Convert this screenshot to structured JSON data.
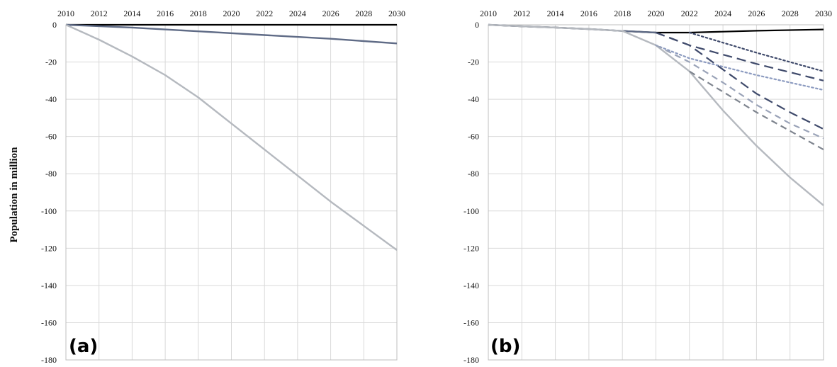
{
  "y_axis_label": "Population in million",
  "chart_data": [
    {
      "type": "line",
      "panel_label": "(a)",
      "x_ticks": [
        "2010",
        "2012",
        "2014",
        "2016",
        "2018",
        "2020",
        "2022",
        "2024",
        "2026",
        "2028",
        "2030"
      ],
      "y_ticks": [
        "0",
        "-20",
        "-40",
        "-60",
        "-80",
        "-100",
        "-120",
        "-140",
        "-160",
        "-180"
      ],
      "xlim": [
        2010,
        2030
      ],
      "ylim": [
        -180,
        0
      ],
      "x_axis_position": "top",
      "grid": true,
      "series": [
        {
          "color": "#000000",
          "style": "solid",
          "x": [
            2010,
            2030
          ],
          "y": [
            0,
            0
          ]
        },
        {
          "color": "#5f6b86",
          "style": "solid",
          "x": [
            2010,
            2014,
            2018,
            2022,
            2026,
            2030
          ],
          "y": [
            0,
            -1.5,
            -3.5,
            -5.5,
            -7.5,
            -10
          ]
        },
        {
          "color": "#b5b9bf",
          "style": "solid",
          "x": [
            2010,
            2012,
            2014,
            2016,
            2018,
            2020,
            2022,
            2024,
            2026,
            2028,
            2030
          ],
          "y": [
            0,
            -8,
            -17,
            -27,
            -39,
            -53,
            -67,
            -81,
            -95,
            -108,
            -121
          ]
        }
      ]
    },
    {
      "type": "line",
      "panel_label": "(b)",
      "x_ticks": [
        "2010",
        "2012",
        "2014",
        "2016",
        "2018",
        "2020",
        "2022",
        "2024",
        "2026",
        "2028",
        "2030"
      ],
      "y_ticks": [
        "0",
        "-20",
        "-40",
        "-60",
        "-80",
        "-100",
        "-120",
        "-140",
        "-160",
        "-180"
      ],
      "xlim": [
        2010,
        2030
      ],
      "ylim": [
        -180,
        0
      ],
      "x_axis_position": "top",
      "grid": true,
      "series": [
        {
          "color": "#000000",
          "style": "solid",
          "x": [
            2010,
            2012,
            2014,
            2016,
            2018,
            2020,
            2022,
            2026,
            2030
          ],
          "y": [
            0,
            -0.8,
            -1.5,
            -2.3,
            -3.3,
            -4.2,
            -4.2,
            -3.2,
            -2.5
          ]
        },
        {
          "color": "#5f6b86",
          "style": "solid",
          "x": [
            2010,
            2012,
            2014,
            2016,
            2018,
            2020
          ],
          "y": [
            0,
            -0.8,
            -1.5,
            -2.3,
            -3.3,
            -4.2
          ]
        },
        {
          "color": "#b5b9bf",
          "style": "solid",
          "x": [
            2010,
            2012,
            2014,
            2016,
            2018,
            2020,
            2022,
            2024,
            2026,
            2028,
            2030
          ],
          "y": [
            0,
            -0.8,
            -1.5,
            -2.3,
            -3.3,
            -11,
            -25,
            -46,
            -65,
            -82,
            -97
          ]
        },
        {
          "color": "#3f4a6b",
          "style": "dotted",
          "x": [
            2022,
            2026,
            2030
          ],
          "y": [
            -4.2,
            -15,
            -25
          ]
        },
        {
          "color": "#3f4a6b",
          "style": "dashed-long",
          "x": [
            2020,
            2022,
            2026,
            2030
          ],
          "y": [
            -4.2,
            -11,
            -21,
            -30
          ]
        },
        {
          "color": "#8c9bc0",
          "style": "dotted",
          "x": [
            2020,
            2022,
            2026,
            2030
          ],
          "y": [
            -11,
            -18,
            -27,
            -35
          ]
        },
        {
          "color": "#3f4a6b",
          "style": "dashed-long",
          "x": [
            2020,
            2022,
            2024,
            2026,
            2028,
            2030
          ],
          "y": [
            -4.2,
            -11,
            -24,
            -37,
            -47,
            -56
          ]
        },
        {
          "color": "#9aa3b8",
          "style": "dashed",
          "x": [
            2020,
            2022,
            2024,
            2026,
            2028,
            2030
          ],
          "y": [
            -11,
            -20,
            -31,
            -43,
            -53,
            -61
          ]
        },
        {
          "color": "#7f858f",
          "style": "dashed",
          "x": [
            2022,
            2024,
            2026,
            2028,
            2030
          ],
          "y": [
            -25,
            -36,
            -47,
            -57,
            -67
          ]
        }
      ]
    }
  ]
}
